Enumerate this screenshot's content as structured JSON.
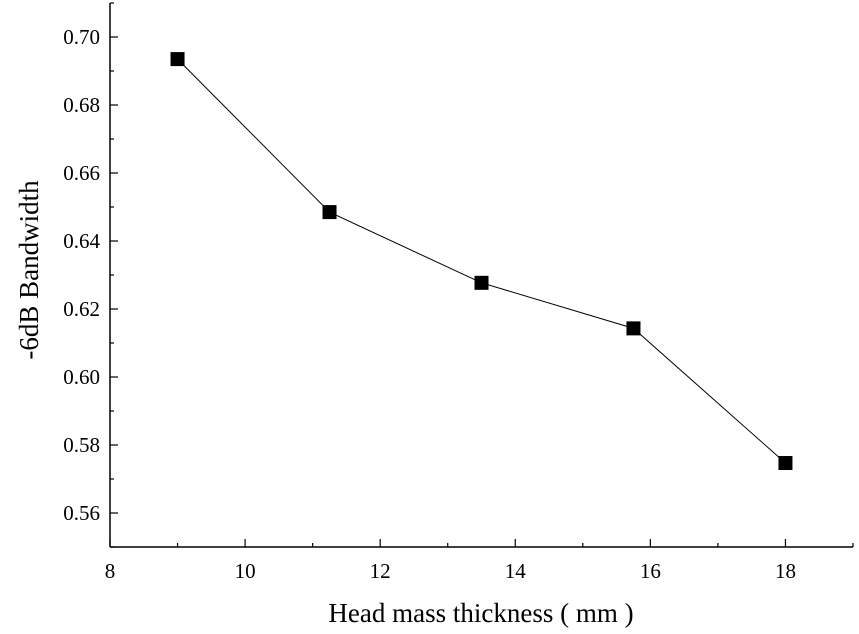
{
  "chart_data": {
    "type": "line",
    "title": "",
    "xlabel": "Head mass thickness ( mm )",
    "ylabel": "-6dB Bandwidth",
    "xlim": [
      8,
      19
    ],
    "ylim": [
      0.55,
      0.71
    ],
    "x_ticks": [
      "8",
      "10",
      "12",
      "14",
      "16",
      "18"
    ],
    "y_ticks": [
      "0.56",
      "0.58",
      "0.60",
      "0.62",
      "0.64",
      "0.66",
      "0.68",
      "0.70"
    ],
    "grid": false,
    "legend": "none",
    "marker": "square",
    "line_color": "#000000",
    "marker_color": "#000000",
    "series": [
      {
        "x": [
          9.0,
          11.25,
          13.5,
          15.75,
          18.0
        ],
        "y": [
          0.6935,
          0.6485,
          0.6277,
          0.6143,
          0.5747
        ]
      }
    ]
  }
}
